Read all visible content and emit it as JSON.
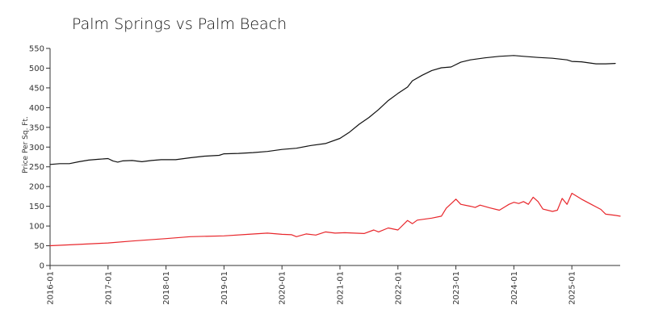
{
  "chart_data": {
    "type": "line",
    "title": "Palm Springs vs Palm Beach",
    "xlabel": "",
    "ylabel": "Price Per Sq. Ft.",
    "ylim": [
      0,
      550
    ],
    "y_ticks": [
      0,
      50,
      100,
      150,
      200,
      250,
      300,
      350,
      400,
      450,
      500,
      550
    ],
    "x_range": [
      "2016-01",
      "2025-11"
    ],
    "x_ticks": [
      "2016-01",
      "2017-01",
      "2018-01",
      "2019-01",
      "2020-01",
      "2021-01",
      "2022-01",
      "2023-01",
      "2024-01",
      "2025-01"
    ],
    "grid": false,
    "legend": "none",
    "series": [
      {
        "color": "#111111",
        "points": [
          [
            "2016-01",
            256
          ],
          [
            "2016-03",
            258
          ],
          [
            "2016-05",
            258
          ],
          [
            "2016-07",
            263
          ],
          [
            "2016-09",
            267
          ],
          [
            "2016-11",
            269
          ],
          [
            "2017-01",
            271
          ],
          [
            "2017-02",
            265
          ],
          [
            "2017-03",
            262
          ],
          [
            "2017-04",
            265
          ],
          [
            "2017-06",
            266
          ],
          [
            "2017-08",
            263
          ],
          [
            "2017-10",
            266
          ],
          [
            "2017-12",
            268
          ],
          [
            "2018-03",
            268
          ],
          [
            "2018-06",
            273
          ],
          [
            "2018-09",
            277
          ],
          [
            "2018-12",
            279
          ],
          [
            "2019-01",
            283
          ],
          [
            "2019-04",
            284
          ],
          [
            "2019-07",
            286
          ],
          [
            "2019-10",
            289
          ],
          [
            "2020-01",
            294
          ],
          [
            "2020-04",
            297
          ],
          [
            "2020-07",
            304
          ],
          [
            "2020-10",
            309
          ],
          [
            "2021-01",
            322
          ],
          [
            "2021-03",
            338
          ],
          [
            "2021-05",
            358
          ],
          [
            "2021-07",
            375
          ],
          [
            "2021-09",
            395
          ],
          [
            "2021-11",
            418
          ],
          [
            "2022-01",
            436
          ],
          [
            "2022-03",
            452
          ],
          [
            "2022-04",
            468
          ],
          [
            "2022-06",
            482
          ],
          [
            "2022-08",
            494
          ],
          [
            "2022-10",
            501
          ],
          [
            "2022-12",
            503
          ],
          [
            "2023-02",
            515
          ],
          [
            "2023-04",
            521
          ],
          [
            "2023-07",
            526
          ],
          [
            "2023-10",
            530
          ],
          [
            "2024-01",
            532
          ],
          [
            "2024-03",
            530
          ],
          [
            "2024-06",
            527
          ],
          [
            "2024-09",
            525
          ],
          [
            "2024-12",
            521
          ],
          [
            "2025-01",
            517
          ],
          [
            "2025-03",
            516
          ],
          [
            "2025-06",
            511
          ],
          [
            "2025-08",
            511
          ],
          [
            "2025-10",
            512
          ]
        ]
      },
      {
        "color": "#e8262b",
        "points": [
          [
            "2016-01",
            50
          ],
          [
            "2016-06",
            53
          ],
          [
            "2017-01",
            57
          ],
          [
            "2017-06",
            62
          ],
          [
            "2018-01",
            68
          ],
          [
            "2018-06",
            73
          ],
          [
            "2019-01",
            75
          ],
          [
            "2019-06",
            79
          ],
          [
            "2019-10",
            82
          ],
          [
            "2020-01",
            79
          ],
          [
            "2020-03",
            78
          ],
          [
            "2020-04",
            73
          ],
          [
            "2020-06",
            80
          ],
          [
            "2020-08",
            77
          ],
          [
            "2020-10",
            85
          ],
          [
            "2020-12",
            82
          ],
          [
            "2021-02",
            83
          ],
          [
            "2021-04",
            82
          ],
          [
            "2021-06",
            81
          ],
          [
            "2021-08",
            90
          ],
          [
            "2021-09",
            85
          ],
          [
            "2021-11",
            95
          ],
          [
            "2022-01",
            90
          ],
          [
            "2022-03",
            114
          ],
          [
            "2022-04",
            106
          ],
          [
            "2022-05",
            115
          ],
          [
            "2022-08",
            120
          ],
          [
            "2022-10",
            125
          ],
          [
            "2022-11",
            145
          ],
          [
            "2023-01",
            168
          ],
          [
            "2023-02",
            155
          ],
          [
            "2023-04",
            150
          ],
          [
            "2023-05",
            147
          ],
          [
            "2023-06",
            153
          ],
          [
            "2023-08",
            146
          ],
          [
            "2023-10",
            140
          ],
          [
            "2023-12",
            155
          ],
          [
            "2024-01",
            160
          ],
          [
            "2024-02",
            157
          ],
          [
            "2024-03",
            162
          ],
          [
            "2024-04",
            155
          ],
          [
            "2024-05",
            173
          ],
          [
            "2024-06",
            162
          ],
          [
            "2024-07",
            143
          ],
          [
            "2024-09",
            137
          ],
          [
            "2024-10",
            140
          ],
          [
            "2024-11",
            170
          ],
          [
            "2024-12",
            155
          ],
          [
            "2025-01",
            183
          ],
          [
            "2025-03",
            168
          ],
          [
            "2025-05",
            155
          ],
          [
            "2025-07",
            142
          ],
          [
            "2025-08",
            130
          ],
          [
            "2025-10",
            127
          ],
          [
            "2025-11",
            125
          ]
        ]
      }
    ]
  }
}
